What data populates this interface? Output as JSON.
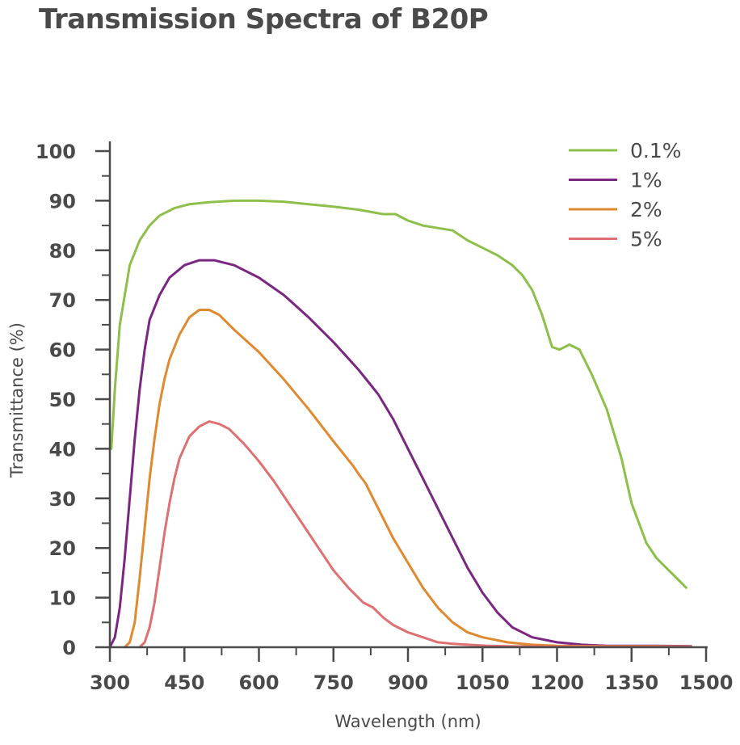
{
  "chart_data": {
    "type": "line",
    "title": "Transmission Spectra of B20P",
    "xlabel": "Wavelength (nm)",
    "ylabel": "Transmittance (%)",
    "xlim": [
      300,
      1500
    ],
    "ylim": [
      0,
      100
    ],
    "x_ticks": [
      300,
      450,
      600,
      750,
      900,
      1050,
      1200,
      1350,
      1500
    ],
    "y_ticks": [
      0,
      10,
      20,
      30,
      40,
      50,
      60,
      70,
      80,
      90,
      100
    ],
    "grid": false,
    "legend_position": "top-right",
    "series": [
      {
        "name": "0.1%",
        "color": "#8dc04b",
        "points": [
          [
            303,
            40
          ],
          [
            310,
            52
          ],
          [
            320,
            65
          ],
          [
            340,
            77
          ],
          [
            360,
            82
          ],
          [
            380,
            85
          ],
          [
            400,
            87
          ],
          [
            430,
            88.5
          ],
          [
            460,
            89.3
          ],
          [
            500,
            89.7
          ],
          [
            550,
            90
          ],
          [
            600,
            90
          ],
          [
            650,
            89.8
          ],
          [
            700,
            89.3
          ],
          [
            750,
            88.8
          ],
          [
            800,
            88.2
          ],
          [
            850,
            87.3
          ],
          [
            875,
            87.3
          ],
          [
            900,
            86
          ],
          [
            930,
            85
          ],
          [
            960,
            84.5
          ],
          [
            990,
            84
          ],
          [
            1020,
            82
          ],
          [
            1050,
            80.5
          ],
          [
            1080,
            79
          ],
          [
            1110,
            77
          ],
          [
            1130,
            75
          ],
          [
            1150,
            72
          ],
          [
            1170,
            67
          ],
          [
            1190,
            60.5
          ],
          [
            1205,
            60
          ],
          [
            1225,
            61
          ],
          [
            1245,
            60
          ],
          [
            1270,
            55
          ],
          [
            1300,
            48
          ],
          [
            1330,
            38
          ],
          [
            1350,
            29
          ],
          [
            1365,
            25
          ],
          [
            1380,
            21
          ],
          [
            1400,
            18
          ],
          [
            1420,
            16
          ],
          [
            1440,
            14
          ],
          [
            1460,
            12
          ]
        ]
      },
      {
        "name": "1%",
        "color": "#7b2683",
        "points": [
          [
            300,
            0
          ],
          [
            310,
            2
          ],
          [
            320,
            8
          ],
          [
            330,
            18
          ],
          [
            340,
            30
          ],
          [
            350,
            42
          ],
          [
            360,
            52
          ],
          [
            370,
            60
          ],
          [
            380,
            66
          ],
          [
            400,
            71
          ],
          [
            420,
            74.5
          ],
          [
            450,
            77
          ],
          [
            480,
            78
          ],
          [
            510,
            78
          ],
          [
            550,
            77
          ],
          [
            600,
            74.5
          ],
          [
            650,
            71
          ],
          [
            700,
            66.5
          ],
          [
            750,
            61.5
          ],
          [
            800,
            56
          ],
          [
            820,
            53.5
          ],
          [
            840,
            51
          ],
          [
            870,
            46
          ],
          [
            900,
            40
          ],
          [
            930,
            34
          ],
          [
            960,
            28
          ],
          [
            990,
            22
          ],
          [
            1020,
            16
          ],
          [
            1050,
            11
          ],
          [
            1080,
            7
          ],
          [
            1110,
            4
          ],
          [
            1150,
            2
          ],
          [
            1200,
            1
          ],
          [
            1250,
            0.5
          ],
          [
            1300,
            0.3
          ],
          [
            1350,
            0.3
          ],
          [
            1400,
            0.3
          ],
          [
            1470,
            0.2
          ]
        ]
      },
      {
        "name": "2%",
        "color": "#e08a30",
        "points": [
          [
            330,
            0
          ],
          [
            340,
            1
          ],
          [
            350,
            5
          ],
          [
            360,
            14
          ],
          [
            370,
            24
          ],
          [
            380,
            34
          ],
          [
            390,
            42
          ],
          [
            400,
            49
          ],
          [
            410,
            54
          ],
          [
            420,
            58
          ],
          [
            440,
            63
          ],
          [
            460,
            66.5
          ],
          [
            480,
            68
          ],
          [
            500,
            68
          ],
          [
            520,
            67
          ],
          [
            550,
            64
          ],
          [
            600,
            59.5
          ],
          [
            650,
            54
          ],
          [
            700,
            48
          ],
          [
            750,
            41.5
          ],
          [
            790,
            36.5
          ],
          [
            800,
            35
          ],
          [
            815,
            33
          ],
          [
            830,
            30
          ],
          [
            850,
            26
          ],
          [
            870,
            22
          ],
          [
            900,
            17
          ],
          [
            930,
            12
          ],
          [
            960,
            8
          ],
          [
            990,
            5
          ],
          [
            1020,
            3
          ],
          [
            1050,
            2
          ],
          [
            1100,
            1
          ],
          [
            1150,
            0.5
          ],
          [
            1200,
            0.3
          ],
          [
            1300,
            0.2
          ],
          [
            1400,
            0.2
          ],
          [
            1470,
            0.1
          ]
        ]
      },
      {
        "name": "5%",
        "color": "#df7072",
        "points": [
          [
            360,
            0
          ],
          [
            370,
            1
          ],
          [
            380,
            4
          ],
          [
            390,
            9
          ],
          [
            400,
            16
          ],
          [
            410,
            23
          ],
          [
            420,
            29
          ],
          [
            430,
            34
          ],
          [
            440,
            38
          ],
          [
            460,
            42.5
          ],
          [
            480,
            44.5
          ],
          [
            500,
            45.5
          ],
          [
            520,
            45
          ],
          [
            540,
            44
          ],
          [
            570,
            41
          ],
          [
            600,
            37.5
          ],
          [
            630,
            33.5
          ],
          [
            660,
            29
          ],
          [
            690,
            24.5
          ],
          [
            720,
            20
          ],
          [
            750,
            15.5
          ],
          [
            780,
            12
          ],
          [
            810,
            9
          ],
          [
            830,
            8
          ],
          [
            850,
            6
          ],
          [
            870,
            4.5
          ],
          [
            900,
            3
          ],
          [
            930,
            2
          ],
          [
            960,
            1
          ],
          [
            990,
            0.7
          ],
          [
            1020,
            0.5
          ],
          [
            1060,
            0.3
          ],
          [
            1100,
            0.2
          ],
          [
            1200,
            0.1
          ],
          [
            1300,
            0.1
          ],
          [
            1400,
            0.1
          ],
          [
            1470,
            0.1
          ]
        ]
      }
    ]
  }
}
